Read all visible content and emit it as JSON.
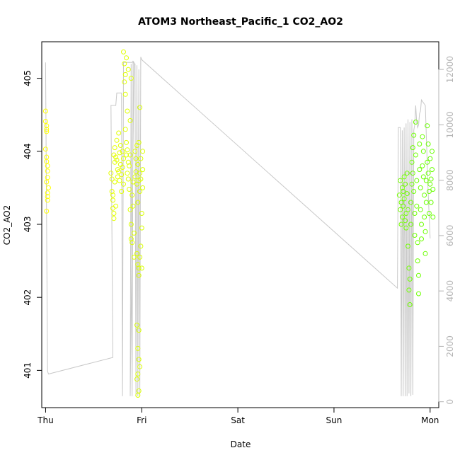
{
  "chart_data": {
    "type": "scatter",
    "title": "ATOM3 Northeast_Pacific_1 CO2_AO2",
    "xlabel": "Date",
    "ylabel": "CO2_AO2",
    "x_ticks": [
      {
        "day": 0,
        "label": "Thu"
      },
      {
        "day": 1,
        "label": "Fri"
      },
      {
        "day": 2,
        "label": "Sat"
      },
      {
        "day": 3,
        "label": "Sun"
      },
      {
        "day": 4,
        "label": "Mon"
      }
    ],
    "y_ticks": [
      401,
      402,
      403,
      404,
      405
    ],
    "y2_ticks": [
      0,
      2000,
      4000,
      6000,
      8000,
      10000,
      12000
    ],
    "xlim": [
      -0.04,
      4.09
    ],
    "ylim": [
      400.49,
      405.5
    ],
    "y2lim": [
      -213,
      13000
    ],
    "colors": {
      "axis": "#000000",
      "altitude_line": "#c8c8c8",
      "right_axis": "#b4b4b4",
      "co2_low": "#ffff00",
      "co2_high": "#66ff00"
    },
    "series": [
      {
        "kind": "points",
        "values": [
          [
            0.0,
            404.55
          ],
          [
            0.0,
            404.41
          ],
          [
            0.01,
            404.35
          ],
          [
            0.01,
            404.3
          ],
          [
            0.01,
            404.27
          ],
          [
            0.0,
            404.03
          ],
          [
            0.01,
            403.92
          ],
          [
            0.01,
            403.86
          ],
          [
            0.02,
            403.8
          ],
          [
            0.02,
            403.73
          ],
          [
            0.02,
            403.64
          ],
          [
            0.01,
            403.58
          ],
          [
            0.03,
            403.5
          ],
          [
            0.02,
            403.43
          ],
          [
            0.02,
            403.38
          ],
          [
            0.02,
            403.33
          ],
          [
            0.01,
            403.18
          ],
          [
            0.68,
            403.7
          ],
          [
            0.69,
            403.62
          ],
          [
            0.69,
            403.45
          ],
          [
            0.7,
            403.4
          ],
          [
            0.7,
            403.33
          ],
          [
            0.7,
            403.22
          ],
          [
            0.71,
            403.15
          ],
          [
            0.71,
            403.08
          ],
          [
            0.71,
            403.95
          ],
          [
            0.72,
            403.85
          ],
          [
            0.72,
            403.58
          ],
          [
            0.73,
            403.25
          ],
          [
            0.72,
            404.05
          ],
          [
            0.73,
            403.92
          ],
          [
            0.74,
            404.15
          ],
          [
            0.74,
            403.88
          ],
          [
            0.75,
            403.75
          ],
          [
            0.75,
            403.65
          ],
          [
            0.76,
            403.72
          ],
          [
            0.76,
            404.25
          ],
          [
            0.77,
            403.98
          ],
          [
            0.77,
            403.6
          ],
          [
            0.78,
            404.08
          ],
          [
            0.78,
            403.82
          ],
          [
            0.79,
            403.68
          ],
          [
            0.79,
            403.45
          ],
          [
            0.8,
            404.0
          ],
          [
            0.8,
            403.78
          ],
          [
            0.81,
            403.9
          ],
          [
            0.81,
            403.55
          ],
          [
            0.82,
            405.2
          ],
          [
            0.82,
            404.95
          ],
          [
            0.83,
            405.05
          ],
          [
            0.83,
            404.3
          ],
          [
            0.84,
            404.12
          ],
          [
            0.84,
            403.95
          ],
          [
            0.85,
            403.7
          ],
          [
            0.85,
            404.02
          ],
          [
            0.86,
            403.85
          ],
          [
            0.86,
            403.62
          ],
          [
            0.87,
            403.48
          ],
          [
            0.87,
            403.8
          ],
          [
            0.88,
            403.95
          ],
          [
            0.88,
            403.2
          ],
          [
            0.89,
            403.0
          ],
          [
            0.89,
            402.8
          ],
          [
            0.9,
            402.75
          ],
          [
            0.9,
            403.4
          ],
          [
            0.91,
            403.58
          ],
          [
            0.91,
            403.25
          ],
          [
            0.92,
            402.88
          ],
          [
            0.92,
            402.55
          ],
          [
            0.81,
            405.36
          ],
          [
            0.84,
            405.28
          ],
          [
            0.86,
            405.12
          ],
          [
            0.89,
            405.0
          ],
          [
            0.83,
            404.78
          ],
          [
            0.85,
            404.55
          ],
          [
            0.88,
            404.42
          ],
          [
            0.93,
            403.65
          ],
          [
            0.93,
            404.0
          ],
          [
            0.94,
            403.9
          ],
          [
            0.94,
            403.72
          ],
          [
            0.95,
            403.55
          ],
          [
            0.95,
            404.08
          ],
          [
            0.96,
            403.82
          ],
          [
            0.96,
            403.3
          ],
          [
            0.97,
            403.6
          ],
          [
            0.97,
            404.12
          ],
          [
            0.98,
            403.7
          ],
          [
            0.98,
            403.45
          ],
          [
            0.99,
            403.9
          ],
          [
            0.99,
            403.62
          ],
          [
            1.0,
            403.15
          ],
          [
            1.0,
            402.95
          ],
          [
            1.01,
            403.5
          ],
          [
            1.01,
            404.0
          ],
          [
            1.01,
            403.75
          ],
          [
            0.98,
            404.6
          ],
          [
            0.95,
            402.6
          ],
          [
            0.96,
            402.45
          ],
          [
            0.97,
            402.3
          ],
          [
            0.95,
            401.62
          ],
          [
            0.97,
            401.55
          ],
          [
            0.96,
            401.3
          ],
          [
            0.97,
            401.15
          ],
          [
            0.98,
            401.05
          ],
          [
            0.96,
            400.95
          ],
          [
            0.95,
            400.88
          ],
          [
            0.97,
            400.72
          ],
          [
            0.96,
            400.66
          ],
          [
            0.97,
            402.4
          ],
          [
            0.98,
            402.55
          ],
          [
            0.99,
            402.7
          ],
          [
            1.0,
            402.4
          ],
          [
            3.68,
            403.4
          ],
          [
            3.69,
            403.6
          ],
          [
            3.69,
            403.2
          ],
          [
            3.7,
            403.0
          ],
          [
            3.7,
            403.3
          ],
          [
            3.71,
            403.5
          ],
          [
            3.71,
            403.1
          ],
          [
            3.72,
            403.45
          ],
          [
            3.72,
            403.25
          ],
          [
            3.73,
            403.65
          ],
          [
            3.73,
            403.35
          ],
          [
            3.74,
            403.05
          ],
          [
            3.74,
            403.55
          ],
          [
            3.75,
            403.15
          ],
          [
            3.75,
            402.95
          ],
          [
            3.76,
            403.42
          ],
          [
            3.76,
            403.7
          ],
          [
            3.77,
            403.2
          ],
          [
            3.77,
            402.7
          ],
          [
            3.78,
            402.4
          ],
          [
            3.78,
            402.1
          ],
          [
            3.79,
            402.25
          ],
          [
            3.79,
            401.9
          ],
          [
            3.8,
            403.3
          ],
          [
            3.8,
            403.0
          ],
          [
            3.81,
            403.55
          ],
          [
            3.81,
            403.85
          ],
          [
            3.82,
            404.05
          ],
          [
            3.82,
            403.7
          ],
          [
            3.83,
            404.22
          ],
          [
            3.83,
            403.45
          ],
          [
            3.84,
            403.15
          ],
          [
            3.84,
            402.85
          ],
          [
            3.85,
            403.95
          ],
          [
            3.85,
            404.4
          ],
          [
            3.86,
            403.6
          ],
          [
            3.86,
            403.25
          ],
          [
            3.87,
            402.75
          ],
          [
            3.87,
            402.5
          ],
          [
            3.88,
            402.3
          ],
          [
            3.88,
            402.05
          ],
          [
            3.89,
            403.75
          ],
          [
            3.89,
            404.1
          ],
          [
            3.9,
            403.5
          ],
          [
            3.9,
            403.2
          ],
          [
            3.91,
            403.0
          ],
          [
            3.91,
            402.8
          ],
          [
            3.92,
            403.8
          ],
          [
            3.92,
            404.2
          ],
          [
            3.93,
            404.0
          ],
          [
            3.93,
            403.65
          ],
          [
            3.94,
            403.4
          ],
          [
            3.94,
            403.1
          ],
          [
            3.95,
            402.9
          ],
          [
            3.95,
            402.6
          ],
          [
            3.96,
            403.3
          ],
          [
            3.96,
            403.6
          ],
          [
            3.97,
            403.85
          ],
          [
            3.97,
            404.35
          ],
          [
            3.98,
            404.1
          ],
          [
            3.98,
            403.7
          ],
          [
            3.99,
            403.45
          ],
          [
            3.99,
            403.15
          ],
          [
            4.0,
            403.55
          ],
          [
            4.0,
            403.9
          ],
          [
            4.01,
            403.62
          ],
          [
            4.01,
            403.3
          ],
          [
            4.02,
            403.75
          ],
          [
            4.02,
            404.0
          ],
          [
            4.03,
            403.48
          ],
          [
            4.03,
            403.1
          ]
        ]
      },
      {
        "kind": "line",
        "axis": "right",
        "values": [
          [
            0.0,
            12250
          ],
          [
            0.0,
            12200
          ],
          [
            0.02,
            1100
          ],
          [
            0.03,
            1000
          ],
          [
            0.7,
            1600
          ],
          [
            0.68,
            10700
          ],
          [
            0.73,
            10700
          ],
          [
            0.74,
            11150
          ],
          [
            0.79,
            11150
          ],
          [
            0.8,
            200
          ],
          [
            0.81,
            12250
          ],
          [
            0.9,
            12250
          ],
          [
            0.91,
            12300
          ],
          [
            0.92,
            12250
          ],
          [
            0.88,
            200
          ],
          [
            0.89,
            12200
          ],
          [
            0.9,
            200
          ],
          [
            0.91,
            12250
          ],
          [
            0.93,
            12200
          ],
          [
            0.94,
            200
          ],
          [
            0.95,
            12150
          ],
          [
            0.96,
            200
          ],
          [
            0.97,
            12000
          ],
          [
            0.98,
            200
          ],
          [
            0.99,
            12450
          ],
          [
            1.0,
            12350
          ],
          [
            3.66,
            4100
          ],
          [
            3.67,
            9900
          ],
          [
            3.69,
            9900
          ],
          [
            3.7,
            200
          ],
          [
            3.71,
            9800
          ],
          [
            3.72,
            200
          ],
          [
            3.73,
            9900
          ],
          [
            3.74,
            200
          ],
          [
            3.75,
            10050
          ],
          [
            3.76,
            200
          ],
          [
            3.77,
            10200
          ],
          [
            3.78,
            300
          ],
          [
            3.79,
            10100
          ],
          [
            3.8,
            200
          ],
          [
            3.81,
            10200
          ],
          [
            3.82,
            250
          ],
          [
            3.83,
            9800
          ],
          [
            3.84,
            10000
          ],
          [
            3.85,
            10700
          ],
          [
            3.86,
            10100
          ],
          [
            3.87,
            9900
          ],
          [
            3.88,
            10000
          ],
          [
            3.89,
            10400
          ],
          [
            3.9,
            10500
          ],
          [
            3.91,
            10900
          ],
          [
            3.95,
            10700
          ],
          [
            3.98,
            7500
          ],
          [
            4.0,
            5900
          ]
        ]
      }
    ]
  }
}
